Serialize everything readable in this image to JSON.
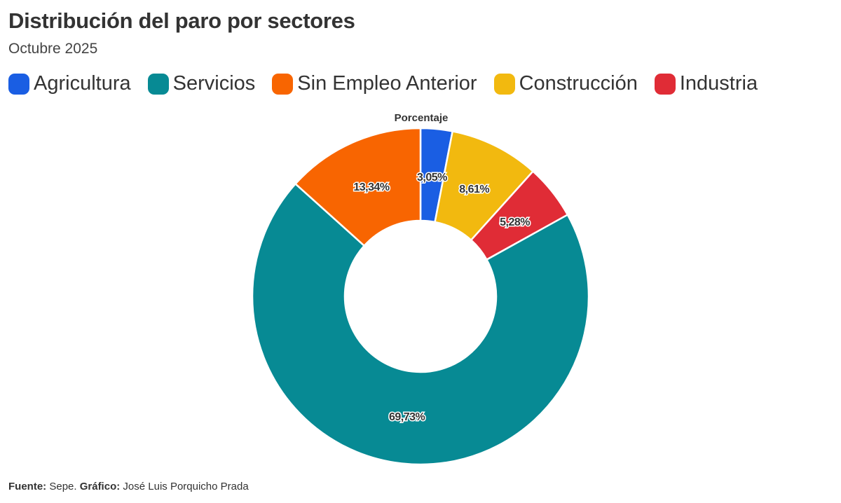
{
  "chart_data": {
    "type": "pie",
    "donut": true,
    "title": "Distribución del paro por sectores",
    "subtitle": "Octubre 2025",
    "series_label": "Porcentaje",
    "legend_position": "top-left",
    "legend": [
      {
        "label": "Agricultura",
        "color": "#1a5ee3"
      },
      {
        "label": "Servicios",
        "color": "#078a94"
      },
      {
        "label": "Sin Empleo Anterior",
        "color": "#f86501"
      },
      {
        "label": "Construcción",
        "color": "#f2b90f"
      },
      {
        "label": "Industria",
        "color": "#e02c36"
      }
    ],
    "slices": [
      {
        "label": "Agricultura",
        "value": 3.05,
        "data_label": "3,05%",
        "color": "#1a5ee3"
      },
      {
        "label": "Construcción",
        "value": 8.61,
        "data_label": "8,61%",
        "color": "#f2b90f"
      },
      {
        "label": "Industria",
        "value": 5.28,
        "data_label": "5,28%",
        "color": "#e02c36"
      },
      {
        "label": "Servicios",
        "value": 69.73,
        "data_label": "69,73%",
        "color": "#078a94"
      },
      {
        "label": "Sin Empleo Anterior",
        "value": 13.34,
        "data_label": "13,34%",
        "color": "#f86501"
      }
    ]
  },
  "footer": {
    "source_label": "Fuente:",
    "source": "Sepe.",
    "credit_label": "Gráfico:",
    "credit": "José Luis Porquicho Prada"
  }
}
